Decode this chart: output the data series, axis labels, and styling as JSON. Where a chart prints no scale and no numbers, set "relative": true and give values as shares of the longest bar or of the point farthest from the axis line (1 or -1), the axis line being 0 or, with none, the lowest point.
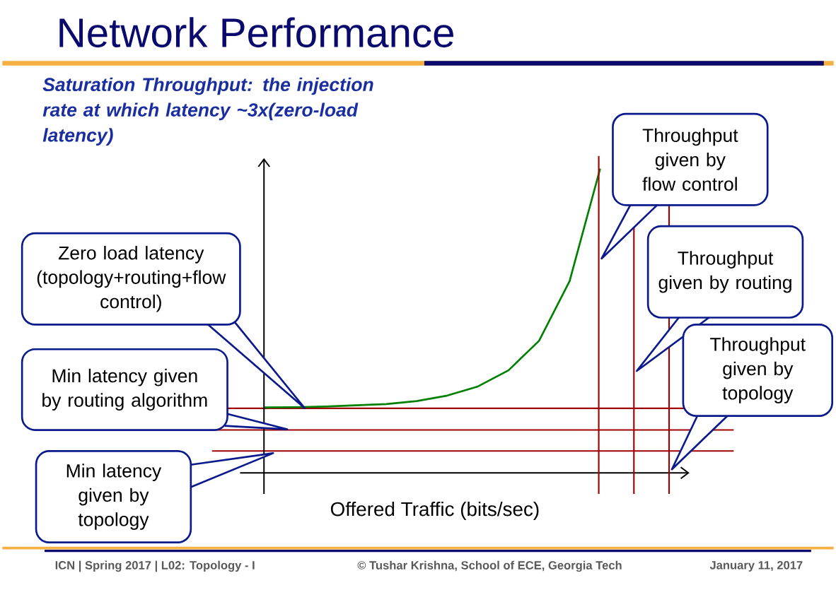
{
  "chart_data": {
    "type": "line",
    "relative": true,
    "title": "Network Performance",
    "subtitle": "Saturation Throughput: the injection rate at which latency ~3x(zero-load latency)",
    "xlabel": "Offered Traffic (bits/sec)",
    "categories": [
      null,
      null,
      null,
      null,
      null,
      null,
      null,
      null,
      null,
      null,
      null,
      null
    ],
    "series": [
      {
        "color": "#008000",
        "values": [
          0.215,
          0.216,
          0.218,
          0.222,
          0.226,
          0.236,
          0.254,
          0.284,
          0.337,
          0.434,
          0.63,
          1.0
        ]
      }
    ],
    "ref_lines": [
      {
        "axis": "y",
        "value": 0.212,
        "color": "#a00000"
      },
      {
        "axis": "y",
        "value": 0.141,
        "label": "Min latency given by routing algorithm",
        "color": "#a00000"
      },
      {
        "axis": "y",
        "value": 0.072,
        "label": "Min latency given by topology",
        "color": "#a00000"
      }
    ],
    "annotations": [
      "Zero load latency (topology+routing+flow control)",
      "Throughput given by flow control",
      "Throughput given by routing",
      "Throughput given by topology",
      "ICN | Spring 2017 | L02: Topology - I",
      "© Tushar Krishna, School of ECE, Georgia Tech",
      "January 11, 2017"
    ]
  }
}
